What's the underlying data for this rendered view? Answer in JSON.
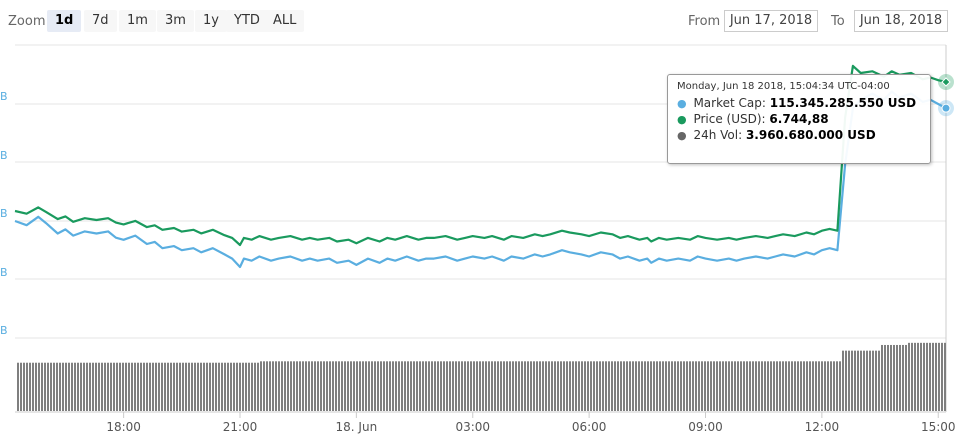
{
  "zoom": {
    "label": "Zoom",
    "buttons": [
      "1d",
      "7d",
      "1m",
      "3m",
      "1y",
      "YTD",
      "ALL"
    ],
    "selected": "1d"
  },
  "range": {
    "from_label": "From",
    "from_value": "Jun 17, 2018",
    "to_label": "To",
    "to_value": "Jun 18, 2018"
  },
  "tooltip": {
    "date": "Monday, Jun 18 2018, 15:04:34 UTC-04:00",
    "rows": [
      {
        "label": "Market Cap:",
        "value": "115.345.285.550 USD",
        "color": "#5aaee0"
      },
      {
        "label": "Price (USD):",
        "value": "6.744,88",
        "color": "#1a9a5e"
      },
      {
        "label": "24h Vol:",
        "value": "3.960.680.000 USD",
        "color": "#666666"
      }
    ]
  },
  "colors": {
    "market_cap": "#5aaee0",
    "price": "#1a9a5e",
    "volume": "#7f7f7f",
    "grid": "#e6e6e6"
  },
  "chart_data": {
    "type": "line",
    "x_tick_labels": [
      "18:00",
      "21:00",
      "18. Jun",
      "03:00",
      "06:00",
      "09:00",
      "12:00",
      "15:00"
    ],
    "x_ticks_hours": [
      18,
      21,
      24,
      27,
      30,
      33,
      36,
      39
    ],
    "x_range_hours": [
      15.2,
      39.2
    ],
    "y_tick_labels": [
      "B",
      "B",
      "B",
      "B",
      "B"
    ],
    "price_range_usd": [
      6380,
      6800
    ],
    "series": [
      {
        "name": "Market Cap",
        "axis": "left",
        "x": [
          15.2,
          15.5,
          15.8,
          16.0,
          16.3,
          16.5,
          16.7,
          17.0,
          17.3,
          17.6,
          17.8,
          18.0,
          18.3,
          18.6,
          18.8,
          19.0,
          19.3,
          19.5,
          19.8,
          20.0,
          20.3,
          20.6,
          20.8,
          21.0,
          21.1,
          21.3,
          21.5,
          21.8,
          22.0,
          22.3,
          22.6,
          22.8,
          23.0,
          23.3,
          23.5,
          23.8,
          24.0,
          24.3,
          24.6,
          24.8,
          25.0,
          25.3,
          25.6,
          25.8,
          26.0,
          26.3,
          26.6,
          26.8,
          27.0,
          27.3,
          27.5,
          27.8,
          28.0,
          28.3,
          28.6,
          28.8,
          29.0,
          29.3,
          29.5,
          29.8,
          30.0,
          30.3,
          30.6,
          30.8,
          31.0,
          31.3,
          31.5,
          31.6,
          31.8,
          32.0,
          32.3,
          32.6,
          32.8,
          33.0,
          33.3,
          33.6,
          33.8,
          34.0,
          34.3,
          34.6,
          34.8,
          35.0,
          35.3,
          35.6,
          35.8,
          36.0,
          36.2,
          36.4,
          36.6,
          36.8,
          37.0,
          37.3,
          37.6,
          37.8,
          38.0,
          38.3,
          38.6,
          38.8,
          39.0,
          39.2
        ],
        "values": [
          106.8,
          106.6,
          107.0,
          106.7,
          106.2,
          106.4,
          106.1,
          106.3,
          106.2,
          106.3,
          106.0,
          105.9,
          106.1,
          105.7,
          105.8,
          105.5,
          105.6,
          105.4,
          105.5,
          105.3,
          105.5,
          105.2,
          105.0,
          104.6,
          105.0,
          104.9,
          105.1,
          104.9,
          105.0,
          105.1,
          104.9,
          105.0,
          104.9,
          105.0,
          104.8,
          104.9,
          104.7,
          105.0,
          104.8,
          105.0,
          104.9,
          105.1,
          104.9,
          105.0,
          105.0,
          105.1,
          104.9,
          105.0,
          105.1,
          105.0,
          105.1,
          104.9,
          105.1,
          105.0,
          105.2,
          105.1,
          105.2,
          105.4,
          105.3,
          105.2,
          105.1,
          105.3,
          105.2,
          105.0,
          105.1,
          104.9,
          105.0,
          104.8,
          105.0,
          104.9,
          105.0,
          104.9,
          105.1,
          105.0,
          104.9,
          105.0,
          104.9,
          105.0,
          105.1,
          105.0,
          105.1,
          105.2,
          105.1,
          105.3,
          105.2,
          105.4,
          105.5,
          105.4,
          109.5,
          112.2,
          112.6,
          112.9,
          112.6,
          113.0,
          112.7,
          112.9,
          112.5,
          112.6,
          112.4,
          112.2
        ]
      },
      {
        "name": "Price (USD)",
        "axis": "right",
        "x": [
          15.2,
          15.5,
          15.8,
          16.0,
          16.3,
          16.5,
          16.7,
          17.0,
          17.3,
          17.6,
          17.8,
          18.0,
          18.3,
          18.6,
          18.8,
          19.0,
          19.3,
          19.5,
          19.8,
          20.0,
          20.3,
          20.6,
          20.8,
          21.0,
          21.1,
          21.3,
          21.5,
          21.8,
          22.0,
          22.3,
          22.6,
          22.8,
          23.0,
          23.3,
          23.5,
          23.8,
          24.0,
          24.3,
          24.6,
          24.8,
          25.0,
          25.3,
          25.6,
          25.8,
          26.0,
          26.3,
          26.6,
          26.8,
          27.0,
          27.3,
          27.5,
          27.8,
          28.0,
          28.3,
          28.6,
          28.8,
          29.0,
          29.3,
          29.5,
          29.8,
          30.0,
          30.3,
          30.6,
          30.8,
          31.0,
          31.3,
          31.5,
          31.6,
          31.8,
          32.0,
          32.3,
          32.6,
          32.8,
          33.0,
          33.3,
          33.6,
          33.8,
          34.0,
          34.3,
          34.6,
          34.8,
          35.0,
          35.3,
          35.6,
          35.8,
          36.0,
          36.2,
          36.4,
          36.6,
          36.8,
          37.0,
          37.3,
          37.6,
          37.8,
          38.0,
          38.3,
          38.6,
          38.8,
          39.0,
          39.2
        ],
        "values": [
          6596,
          6593,
          6600,
          6595,
          6587,
          6590,
          6584,
          6588,
          6586,
          6588,
          6583,
          6581,
          6585,
          6578,
          6580,
          6575,
          6577,
          6573,
          6575,
          6571,
          6575,
          6569,
          6566,
          6558,
          6566,
          6564,
          6568,
          6564,
          6566,
          6568,
          6564,
          6566,
          6564,
          6566,
          6562,
          6564,
          6560,
          6566,
          6562,
          6566,
          6564,
          6568,
          6564,
          6566,
          6566,
          6568,
          6564,
          6566,
          6568,
          6566,
          6568,
          6564,
          6568,
          6566,
          6570,
          6568,
          6570,
          6574,
          6572,
          6570,
          6568,
          6572,
          6570,
          6566,
          6568,
          6564,
          6566,
          6562,
          6566,
          6564,
          6566,
          6564,
          6568,
          6566,
          6564,
          6566,
          6564,
          6566,
          6568,
          6566,
          6568,
          6570,
          6568,
          6572,
          6570,
          6574,
          6576,
          6574,
          6700,
          6758,
          6750,
          6752,
          6746,
          6752,
          6748,
          6750,
          6743,
          6745,
          6742,
          6740
        ]
      },
      {
        "name": "24h Vol",
        "type": "column",
        "x_range_hours": [
          15.2,
          39.2
        ],
        "step_changes": [
          {
            "from_hour": 15.2,
            "value": 3.68
          },
          {
            "from_hour": 21.5,
            "value": 3.7
          },
          {
            "from_hour": 36.5,
            "value": 3.85
          },
          {
            "from_hour": 37.5,
            "value": 3.93
          },
          {
            "from_hour": 38.2,
            "value": 3.96
          }
        ],
        "range": [
          3.0,
          4.0
        ]
      }
    ]
  }
}
